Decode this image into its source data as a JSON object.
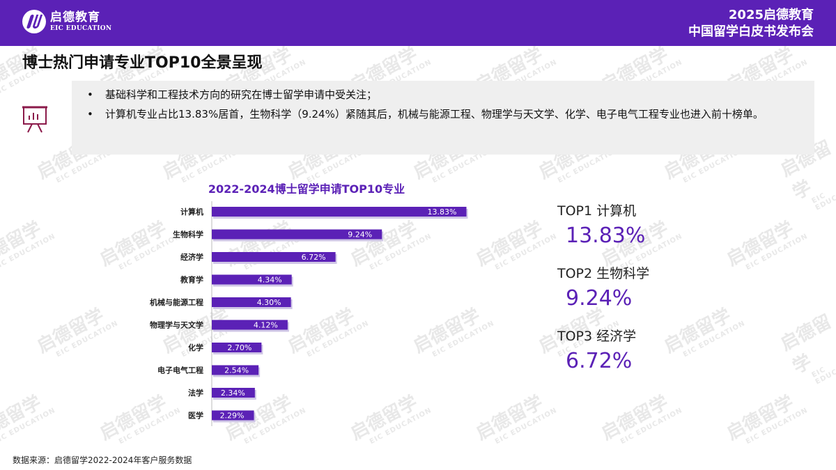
{
  "brand": {
    "cn": "启德教育",
    "en": "EIC EDUCATION"
  },
  "event": {
    "line1": "2025启德教育",
    "line2": "中国留学白皮书发布会"
  },
  "slide_title": "博士热门申请专业TOP10全景呈现",
  "bullets": [
    "基础科学和工程技术方向的研究在博士留学申请中受关注；",
    "计算机专业占比13.83%居首，生物科学（9.24%）紧随其后，机械与能源工程、物理学与天文学、化学、电子电气工程专业也进入前十榜单。"
  ],
  "watermark": {
    "cn": "启德留学",
    "en": "EIC EDUCATION"
  },
  "colors": {
    "accent": "#5b21b6",
    "bar": "#5b21b6"
  },
  "icons": {
    "bullet_icon": "presentation-board-icon"
  },
  "chart_data": {
    "type": "bar",
    "orientation": "horizontal",
    "title": "2022-2024博士留学申请TOP10专业",
    "categories": [
      "计算机",
      "生物科学",
      "经济学",
      "教育学",
      "机械与能源工程",
      "物理学与天文学",
      "化学",
      "电子电气工程",
      "法学",
      "医学"
    ],
    "values": [
      13.83,
      9.24,
      6.72,
      4.34,
      4.3,
      4.12,
      2.7,
      2.54,
      2.34,
      2.29
    ],
    "value_labels": [
      "13.83%",
      "9.24%",
      "6.72%",
      "4.34%",
      "4.30%",
      "4.12%",
      "2.70%",
      "2.54%",
      "2.34%",
      "2.29%"
    ],
    "xlim": [
      0,
      14
    ],
    "grid": false,
    "legend": "none"
  },
  "highlights": [
    {
      "label": "TOP1 计算机",
      "value": "13.83%"
    },
    {
      "label": "TOP2 生物科学",
      "value": "9.24%"
    },
    {
      "label": "TOP3 经济学",
      "value": "6.72%"
    }
  ],
  "source": "数据来源：启德留学2022-2024年客户服务数据"
}
